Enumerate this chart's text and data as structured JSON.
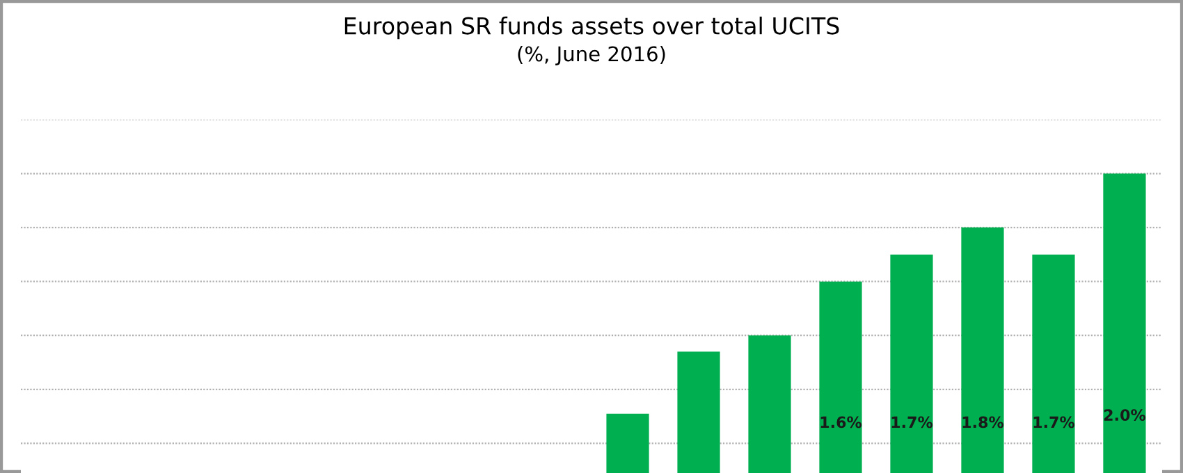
{
  "chart_data": {
    "type": "bar",
    "title": "European SR funds assets over total UCITS",
    "subtitle": "(%, June 2016)",
    "categories": [
      null,
      null,
      null,
      null,
      null,
      null,
      null,
      null
    ],
    "ylim": [
      0.89,
      2.2
    ],
    "yticks": [
      {
        "value": 1.0,
        "label": null
      },
      {
        "value": 1.2,
        "label": null
      },
      {
        "value": 1.4,
        "label": null
      },
      {
        "value": 1.6,
        "label": null
      },
      {
        "value": 1.8,
        "label": null
      },
      {
        "value": 2.0,
        "label": null
      },
      {
        "value": 2.2,
        "label": null
      }
    ],
    "grid": "y",
    "color": "#00b050",
    "values": [
      1.11,
      1.34,
      1.4,
      1.6,
      1.7,
      1.8,
      1.7,
      2.0
    ],
    "value_labels": [
      null,
      null,
      null,
      "1.6%",
      "1.7%",
      "1.8%",
      "1.7%",
      "2.0%"
    ]
  }
}
